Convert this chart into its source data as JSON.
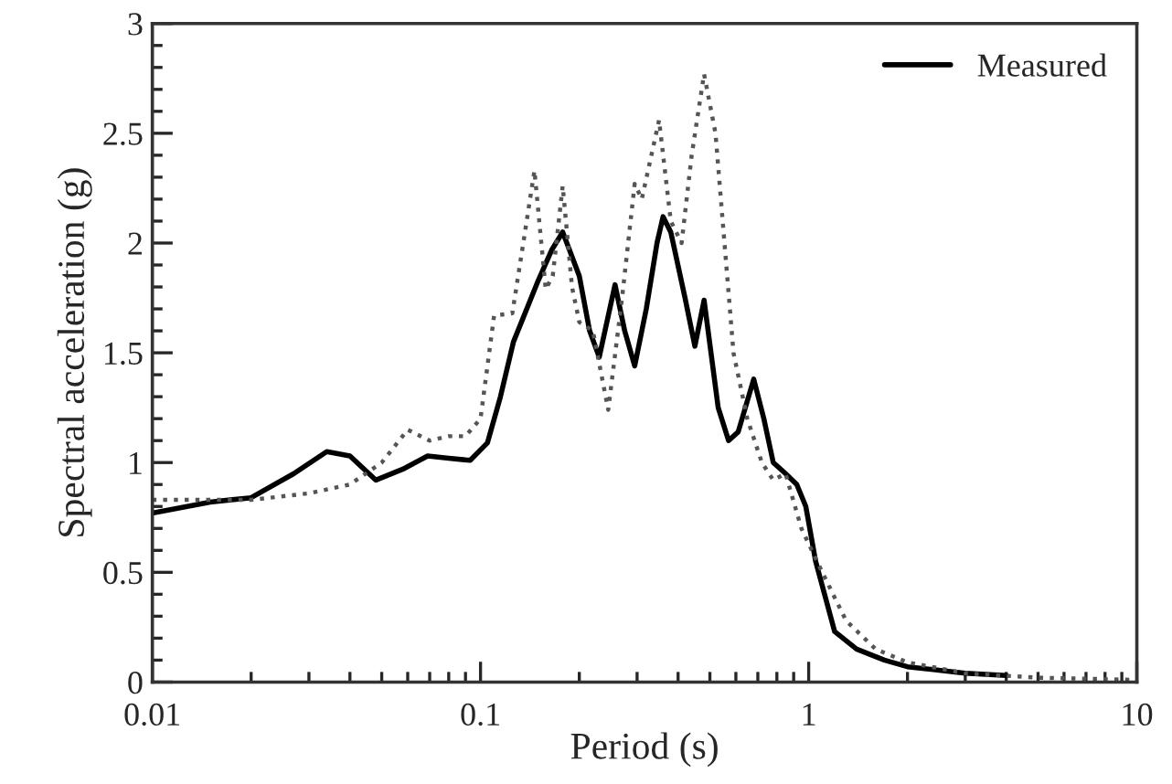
{
  "chart_data": {
    "type": "line",
    "xlabel": "Period (s)",
    "ylabel": "Spectral acceleration (g)",
    "log": "x",
    "xlim": [
      0.01,
      10
    ],
    "xticks": [
      0.01,
      0.1,
      1,
      10
    ],
    "ylim": [
      0,
      3
    ],
    "yticks": [
      0,
      0.5,
      1,
      1.5,
      2,
      2.5,
      3
    ],
    "grid": false,
    "legend": "top right",
    "marker": "none",
    "series": [
      {
        "name": "Measured",
        "color": "#000000",
        "line_style": "solid",
        "x": [
          0.01,
          0.015,
          0.02,
          0.027,
          0.034,
          0.04,
          0.048,
          0.058,
          0.069,
          0.08,
          0.093,
          0.105,
          0.115,
          0.126,
          0.15,
          0.165,
          0.178,
          0.2,
          0.215,
          0.23,
          0.257,
          0.275,
          0.295,
          0.32,
          0.345,
          0.36,
          0.38,
          0.42,
          0.45,
          0.48,
          0.53,
          0.57,
          0.61,
          0.68,
          0.73,
          0.78,
          0.85,
          0.92,
          0.98,
          1.05,
          1.2,
          1.4,
          1.7,
          2,
          3,
          4
        ],
        "values": [
          0.77,
          0.82,
          0.84,
          0.95,
          1.05,
          1.03,
          0.92,
          0.97,
          1.03,
          1.02,
          1.01,
          1.09,
          1.3,
          1.55,
          1.83,
          1.97,
          2.05,
          1.85,
          1.6,
          1.48,
          1.81,
          1.6,
          1.44,
          1.7,
          2.0,
          2.12,
          2.05,
          1.75,
          1.53,
          1.74,
          1.25,
          1.1,
          1.14,
          1.38,
          1.2,
          1.0,
          0.95,
          0.9,
          0.8,
          0.55,
          0.23,
          0.15,
          0.1,
          0.07,
          0.04,
          0.03
        ]
      },
      {
        "color": "#555555",
        "line_style": "dotted",
        "x": [
          0.01,
          0.02,
          0.03,
          0.04,
          0.05,
          0.06,
          0.07,
          0.08,
          0.09,
          0.1,
          0.11,
          0.125,
          0.135,
          0.146,
          0.158,
          0.166,
          0.178,
          0.19,
          0.2,
          0.22,
          0.245,
          0.27,
          0.295,
          0.31,
          0.35,
          0.38,
          0.41,
          0.44,
          0.48,
          0.52,
          0.59,
          0.65,
          0.72,
          0.78,
          0.85,
          0.95,
          1.1,
          1.3,
          1.6,
          2,
          3,
          5,
          10
        ],
        "values": [
          0.83,
          0.83,
          0.86,
          0.9,
          1.0,
          1.15,
          1.1,
          1.12,
          1.12,
          1.2,
          1.67,
          1.68,
          2.0,
          2.33,
          1.79,
          1.85,
          2.26,
          1.8,
          1.64,
          1.6,
          1.24,
          1.75,
          2.27,
          2.2,
          2.56,
          2.1,
          2.0,
          2.4,
          2.77,
          2.5,
          1.5,
          1.2,
          1.0,
          0.92,
          0.95,
          0.7,
          0.5,
          0.28,
          0.15,
          0.09,
          0.04,
          0.02,
          0.01
        ]
      }
    ]
  }
}
